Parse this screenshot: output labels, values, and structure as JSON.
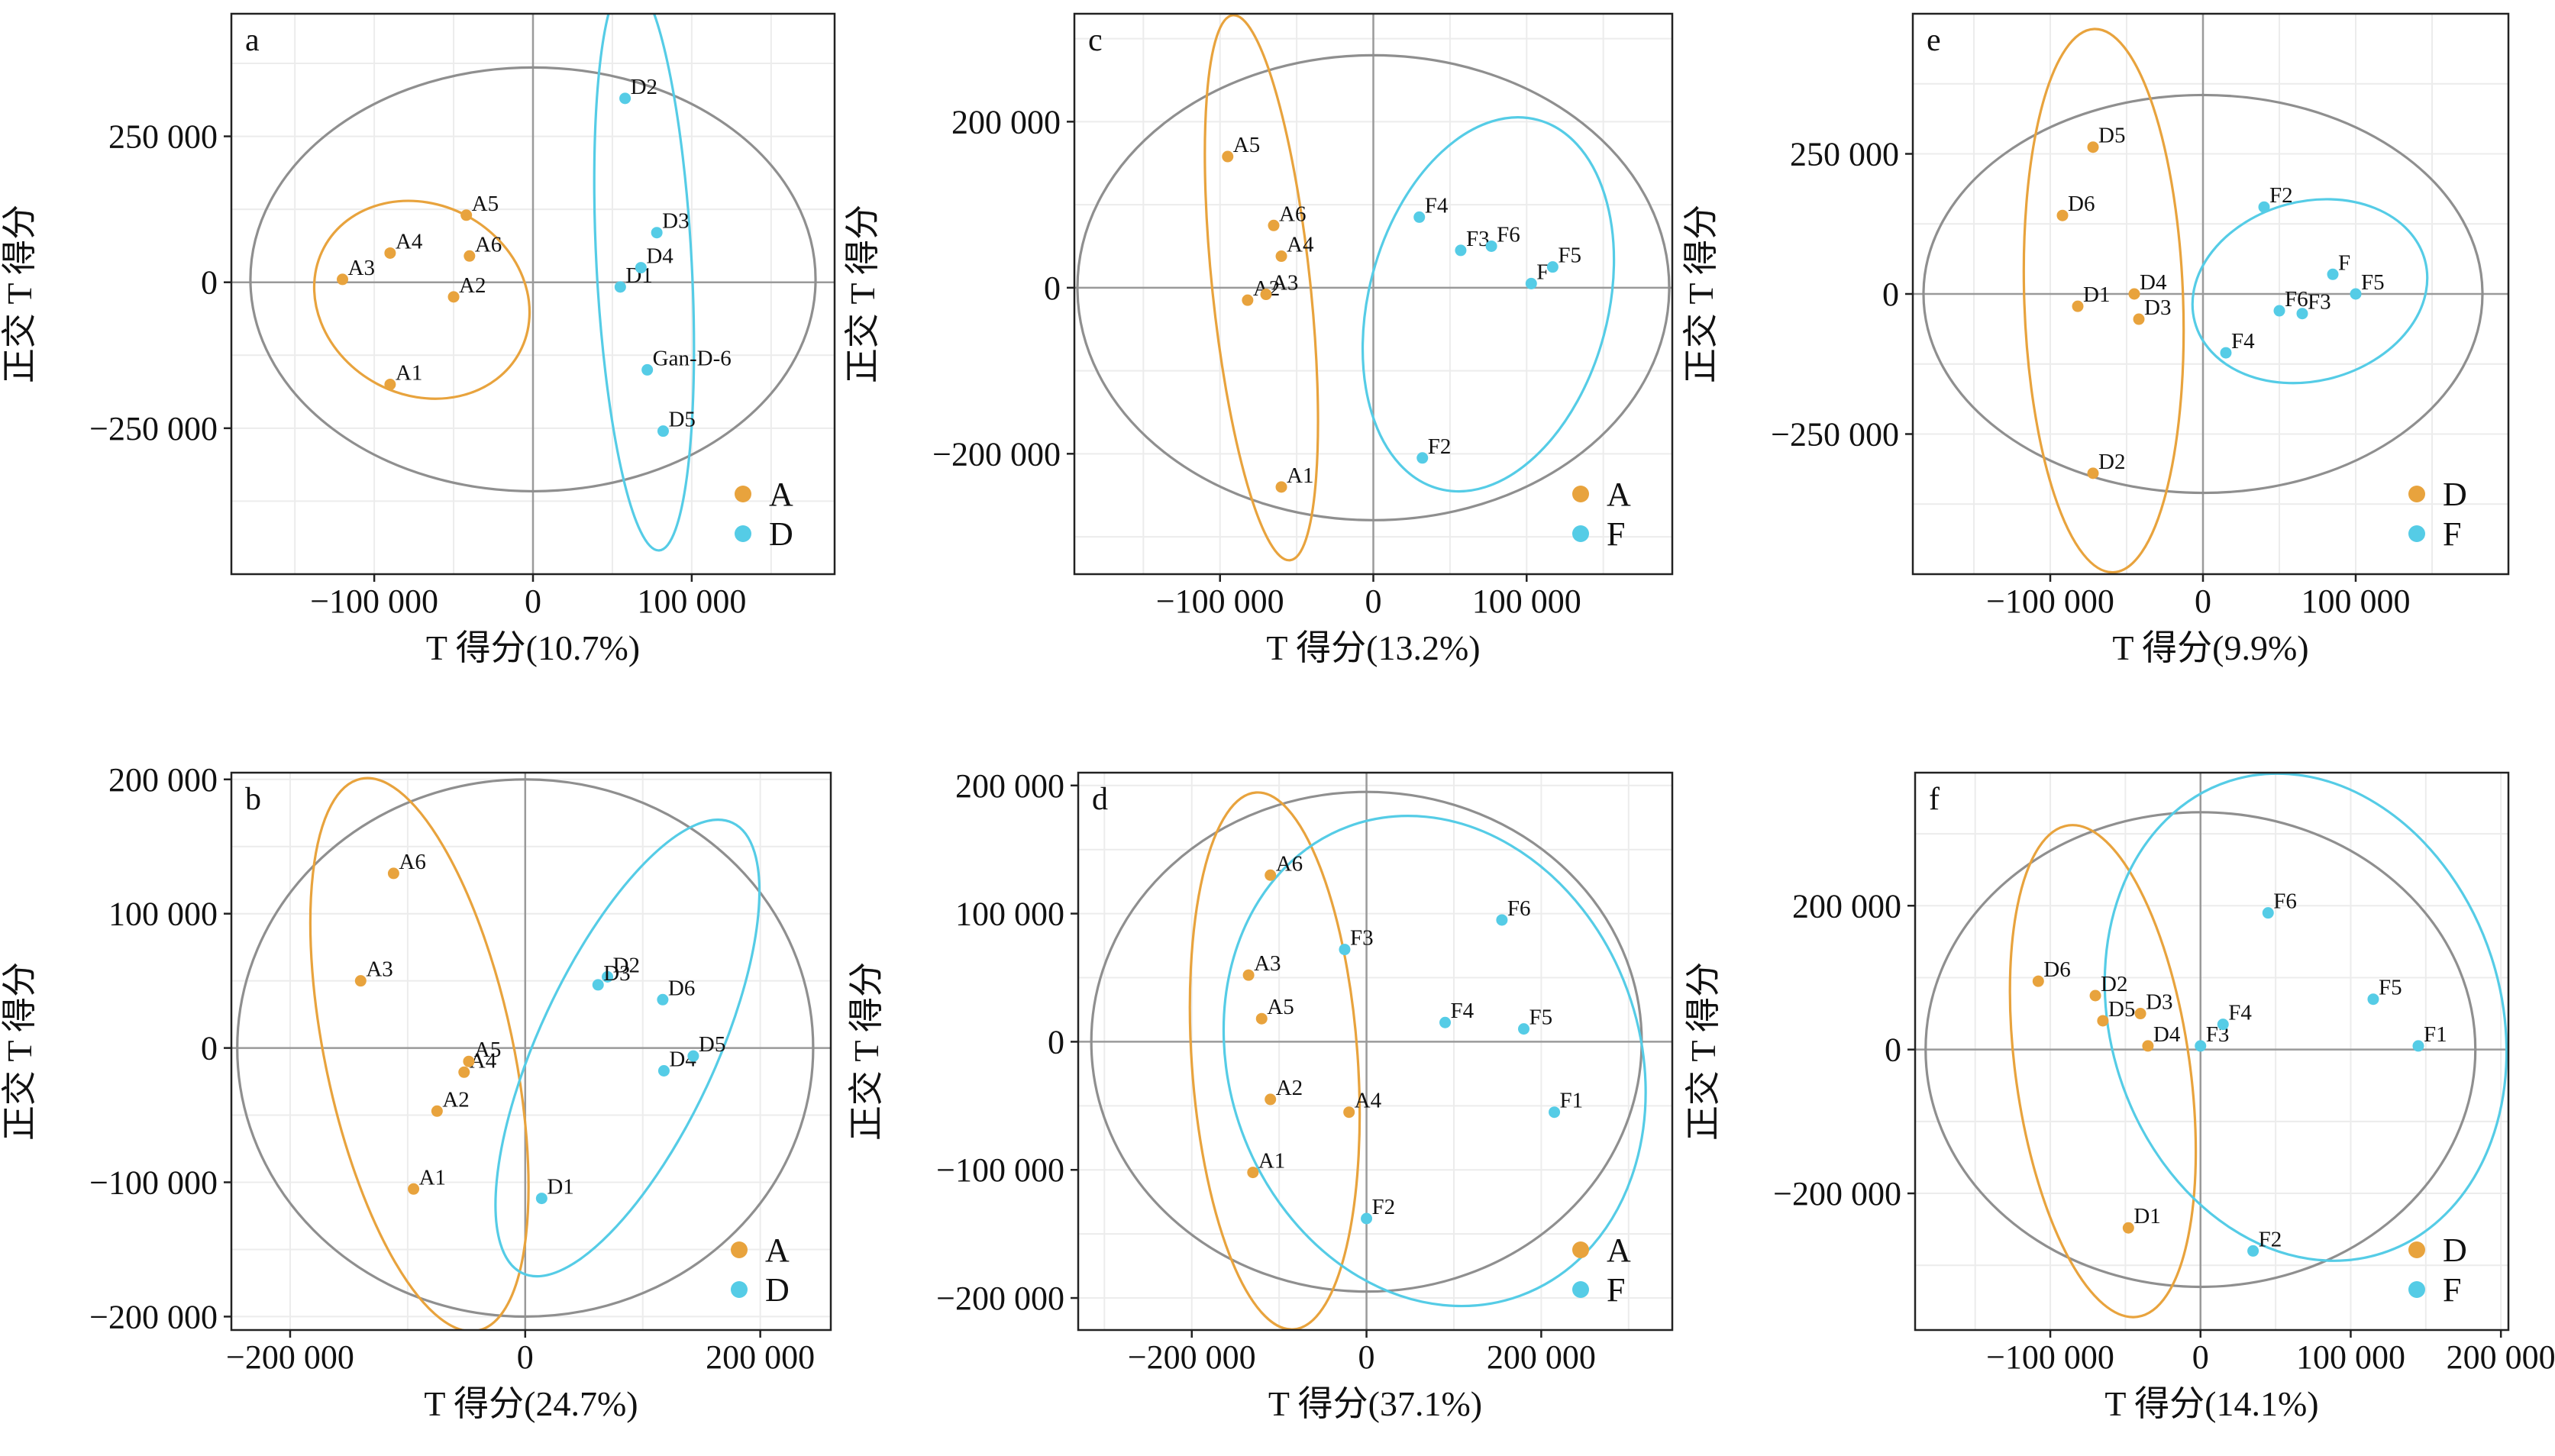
{
  "colors": {
    "A": "#E8A33D",
    "D": "#E8A33D",
    "F": "#55CCE6",
    "D_as_second": "#55CCE6",
    "ellipse_all": "#8f8f8f"
  },
  "chart_data": [
    {
      "panel": "a",
      "type": "scatter",
      "xlabel": "T 得分(10.7%)",
      "ylabel": "正交 T 得分",
      "xlim": [
        -190000,
        190000
      ],
      "ylim": [
        -500000,
        460000
      ],
      "xticks": [
        -100000,
        0,
        100000
      ],
      "xtick_labels": [
        "−100 000",
        "0",
        "100 000"
      ],
      "yticks": [
        -250000,
        0,
        250000
      ],
      "ytick_labels": [
        "−250 000",
        "0",
        "250 000"
      ],
      "groups": [
        {
          "name": "A",
          "color": "#E8A33D",
          "points": [
            {
              "label": "A1",
              "x": -90000,
              "y": -175000
            },
            {
              "label": "A2",
              "x": -50000,
              "y": -25000
            },
            {
              "label": "A3",
              "x": -120000,
              "y": 5000
            },
            {
              "label": "A4",
              "x": -90000,
              "y": 50000
            },
            {
              "label": "A5",
              "x": -42000,
              "y": 115000
            },
            {
              "label": "A6",
              "x": -40000,
              "y": 45000
            }
          ],
          "ellipse": {
            "cx": -70000,
            "cy": -30000,
            "rx": 60000,
            "ry": 190000,
            "angle": -62
          }
        },
        {
          "name": "D",
          "color": "#55CCE6",
          "points": [
            {
              "label": "D1",
              "x": 55000,
              "y": -8000
            },
            {
              "label": "D2",
              "x": 58000,
              "y": 315000
            },
            {
              "label": "D3",
              "x": 78000,
              "y": 85000
            },
            {
              "label": "D4",
              "x": 68000,
              "y": 25000
            },
            {
              "label": "D5",
              "x": 82000,
              "y": -255000
            },
            {
              "label": "Gan-D-6",
              "x": 72000,
              "y": -150000
            }
          ],
          "ellipse": {
            "cx": 70000,
            "cy": 30000,
            "rx": 30000,
            "ry": 490000,
            "angle": -3
          }
        }
      ],
      "ellipse_all": {
        "cx": 0,
        "cy": 5000,
        "rx": 178000,
        "ry": 363000,
        "angle": 0
      }
    },
    {
      "panel": "b",
      "type": "scatter",
      "xlabel": "T 得分(24.7%)",
      "ylabel": "正交 T 得分",
      "xlim": [
        -250000,
        260000
      ],
      "ylim": [
        -210000,
        205000
      ],
      "xticks": [
        -200000,
        0,
        200000
      ],
      "xtick_labels": [
        "−200 000",
        "0",
        "200 000"
      ],
      "yticks": [
        -200000,
        -100000,
        0,
        100000,
        200000
      ],
      "ytick_labels": [
        "−200 000",
        "−100 000",
        "0",
        "100 000",
        "200 000"
      ],
      "groups": [
        {
          "name": "A",
          "color": "#E8A33D",
          "points": [
            {
              "label": "A1",
              "x": -95000,
              "y": -105000
            },
            {
              "label": "A2",
              "x": -75000,
              "y": -47000
            },
            {
              "label": "A3",
              "x": -140000,
              "y": 50000
            },
            {
              "label": "A4",
              "x": -52000,
              "y": -18000
            },
            {
              "label": "A5",
              "x": -48000,
              "y": -10000
            },
            {
              "label": "A6",
              "x": -112000,
              "y": 130000
            }
          ],
          "ellipse": {
            "cx": -90000,
            "cy": -5000,
            "rx": 80000,
            "ry": 210000,
            "angle": -12
          }
        },
        {
          "name": "D",
          "color": "#55CCE6",
          "points": [
            {
              "label": "D1",
              "x": 14000,
              "y": -112000
            },
            {
              "label": "D2",
              "x": 70000,
              "y": 53000
            },
            {
              "label": "D3",
              "x": 62000,
              "y": 47000
            },
            {
              "label": "D4",
              "x": 118000,
              "y": -17000
            },
            {
              "label": "D5",
              "x": 143000,
              "y": -6000
            },
            {
              "label": "D6",
              "x": 117000,
              "y": 36000
            }
          ],
          "ellipse": {
            "cx": 87000,
            "cy": 0,
            "rx": 75000,
            "ry": 185000,
            "angle": 25
          }
        }
      ],
      "ellipse_all": {
        "cx": 0,
        "cy": 0,
        "rx": 245000,
        "ry": 200000,
        "angle": 0
      }
    },
    {
      "panel": "c",
      "type": "scatter",
      "xlabel": "T 得分(13.2%)",
      "ylabel": "正交 T 得分",
      "xlim": [
        -195000,
        195000
      ],
      "ylim": [
        -345000,
        330000
      ],
      "xticks": [
        -100000,
        0,
        100000
      ],
      "xtick_labels": [
        "−100 000",
        "0",
        "100 000"
      ],
      "yticks": [
        -200000,
        0,
        200000
      ],
      "ytick_labels": [
        "−200 000",
        "0",
        "200 000"
      ],
      "groups": [
        {
          "name": "A",
          "color": "#E8A33D",
          "points": [
            {
              "label": "A1",
              "x": -60000,
              "y": -240000
            },
            {
              "label": "A2",
              "x": -82000,
              "y": -15000
            },
            {
              "label": "A3",
              "x": -70000,
              "y": -8000
            },
            {
              "label": "A4",
              "x": -60000,
              "y": 38000
            },
            {
              "label": "A5",
              "x": -95000,
              "y": 158000
            },
            {
              "label": "A6",
              "x": -65000,
              "y": 75000
            }
          ],
          "ellipse": {
            "cx": -73000,
            "cy": 0,
            "rx": 32000,
            "ry": 330000,
            "angle": -6
          }
        },
        {
          "name": "F",
          "color": "#55CCE6",
          "points": [
            {
              "label": "F",
              "x": 103000,
              "y": 5000
            },
            {
              "label": "F2",
              "x": 32000,
              "y": -205000
            },
            {
              "label": "F3",
              "x": 57000,
              "y": 45000
            },
            {
              "label": "F4",
              "x": 30000,
              "y": 85000
            },
            {
              "label": "F5",
              "x": 117000,
              "y": 25000
            },
            {
              "label": "F6",
              "x": 77000,
              "y": 50000
            }
          ],
          "ellipse": {
            "cx": 75000,
            "cy": -20000,
            "rx": 78000,
            "ry": 230000,
            "angle": 15
          }
        }
      ],
      "ellipse_all": {
        "cx": 0,
        "cy": 0,
        "rx": 193000,
        "ry": 280000,
        "angle": 0
      }
    },
    {
      "panel": "d",
      "type": "scatter",
      "xlabel": "T 得分(37.1%)",
      "ylabel": "正交 T 得分",
      "xlim": [
        -330000,
        350000
      ],
      "ylim": [
        -225000,
        210000
      ],
      "xticks": [
        -200000,
        0,
        200000
      ],
      "xtick_labels": [
        "−200 000",
        "0",
        "200 000"
      ],
      "yticks": [
        -200000,
        -100000,
        0,
        100000,
        200000
      ],
      "ytick_labels": [
        "−200 000",
        "−100 000",
        "0",
        "100 000",
        "200 000"
      ],
      "groups": [
        {
          "name": "A",
          "color": "#E8A33D",
          "points": [
            {
              "label": "A1",
              "x": -130000,
              "y": -102000
            },
            {
              "label": "A2",
              "x": -110000,
              "y": -45000
            },
            {
              "label": "A3",
              "x": -135000,
              "y": 52000
            },
            {
              "label": "A4",
              "x": -20000,
              "y": -55000
            },
            {
              "label": "A5",
              "x": -120000,
              "y": 18000
            },
            {
              "label": "A6",
              "x": -110000,
              "y": 130000
            }
          ],
          "ellipse": {
            "cx": -105000,
            "cy": -15000,
            "rx": 95000,
            "ry": 210000,
            "angle": -4
          }
        },
        {
          "name": "F",
          "color": "#55CCE6",
          "points": [
            {
              "label": "F1",
              "x": 215000,
              "y": -55000
            },
            {
              "label": "F2",
              "x": 0,
              "y": -138000
            },
            {
              "label": "F3",
              "x": -25000,
              "y": 72000
            },
            {
              "label": "F4",
              "x": 90000,
              "y": 15000
            },
            {
              "label": "F5",
              "x": 180000,
              "y": 10000
            },
            {
              "label": "F6",
              "x": 155000,
              "y": 95000
            }
          ],
          "ellipse": {
            "cx": 78000,
            "cy": -15000,
            "rx": 235000,
            "ry": 195000,
            "angle": -20
          }
        }
      ],
      "ellipse_all": {
        "cx": 0,
        "cy": 0,
        "rx": 315000,
        "ry": 195000,
        "angle": 0
      }
    },
    {
      "panel": "e",
      "type": "scatter",
      "xlabel": "T 得分(9.9%)",
      "ylabel": "正交 T 得分",
      "xlim": [
        -190000,
        200000
      ],
      "ylim": [
        -500000,
        500000
      ],
      "xticks": [
        -100000,
        0,
        100000
      ],
      "xtick_labels": [
        "−100 000",
        "0",
        "100 000"
      ],
      "yticks": [
        -250000,
        0,
        250000
      ],
      "ytick_labels": [
        "−250 000",
        "0",
        "250 000"
      ],
      "groups": [
        {
          "name": "D",
          "color": "#E8A33D",
          "points": [
            {
              "label": "D1",
              "x": -82000,
              "y": -22000
            },
            {
              "label": "D2",
              "x": -72000,
              "y": -320000
            },
            {
              "label": "D3",
              "x": -42000,
              "y": -45000
            },
            {
              "label": "D4",
              "x": -45000,
              "y": 0
            },
            {
              "label": "D5",
              "x": -72000,
              "y": 262000
            },
            {
              "label": "D6",
              "x": -92000,
              "y": 140000
            }
          ],
          "ellipse": {
            "cx": -65000,
            "cy": -12000,
            "rx": 52000,
            "ry": 485000,
            "angle": -2
          }
        },
        {
          "name": "F",
          "color": "#55CCE6",
          "points": [
            {
              "label": "F",
              "x": 85000,
              "y": 35000
            },
            {
              "label": "F2",
              "x": 40000,
              "y": 155000
            },
            {
              "label": "F3",
              "x": 65000,
              "y": -35000
            },
            {
              "label": "F4",
              "x": 15000,
              "y": -105000
            },
            {
              "label": "F5",
              "x": 100000,
              "y": 0
            },
            {
              "label": "F6",
              "x": 50000,
              "y": -30000
            }
          ],
          "ellipse": {
            "cx": 70000,
            "cy": 5000,
            "rx": 78000,
            "ry": 160000,
            "angle": -15
          }
        }
      ],
      "ellipse_all": {
        "cx": 0,
        "cy": 0,
        "rx": 183000,
        "ry": 355000,
        "angle": 0
      }
    },
    {
      "panel": "f",
      "type": "scatter",
      "xlabel": "T 得分(14.1%)",
      "ylabel": "正交 T 得分",
      "xlim": [
        -190000,
        205000
      ],
      "ylim": [
        -390000,
        385000
      ],
      "xticks": [
        -100000,
        0,
        100000,
        200000
      ],
      "xtick_labels": [
        "−100 000",
        "0",
        "100 000",
        "200 000"
      ],
      "yticks": [
        -200000,
        0,
        200000
      ],
      "ytick_labels": [
        "−200 000",
        "0",
        "200 000"
      ],
      "groups": [
        {
          "name": "D",
          "color": "#E8A33D",
          "points": [
            {
              "label": "D1",
              "x": -48000,
              "y": -248000
            },
            {
              "label": "D2",
              "x": -70000,
              "y": 75000
            },
            {
              "label": "D3",
              "x": -40000,
              "y": 50000
            },
            {
              "label": "D4",
              "x": -35000,
              "y": 5000
            },
            {
              "label": "D5",
              "x": -65000,
              "y": 40000
            },
            {
              "label": "D6",
              "x": -108000,
              "y": 95000
            }
          ],
          "ellipse": {
            "cx": -65000,
            "cy": -30000,
            "rx": 58000,
            "ry": 345000,
            "angle": -8
          }
        },
        {
          "name": "F",
          "color": "#55CCE6",
          "points": [
            {
              "label": "F1",
              "x": 145000,
              "y": 5000
            },
            {
              "label": "F2",
              "x": 35000,
              "y": -280000
            },
            {
              "label": "F3",
              "x": 0,
              "y": 5000
            },
            {
              "label": "F4",
              "x": 15000,
              "y": 35000
            },
            {
              "label": "F5",
              "x": 115000,
              "y": 70000
            },
            {
              "label": "F6",
              "x": 45000,
              "y": 190000
            }
          ],
          "ellipse": {
            "cx": 70000,
            "cy": 45000,
            "rx": 130000,
            "ry": 345000,
            "angle": -18
          }
        }
      ],
      "ellipse_all": {
        "cx": 0,
        "cy": 0,
        "rx": 183000,
        "ry": 330000,
        "angle": 0
      }
    }
  ]
}
